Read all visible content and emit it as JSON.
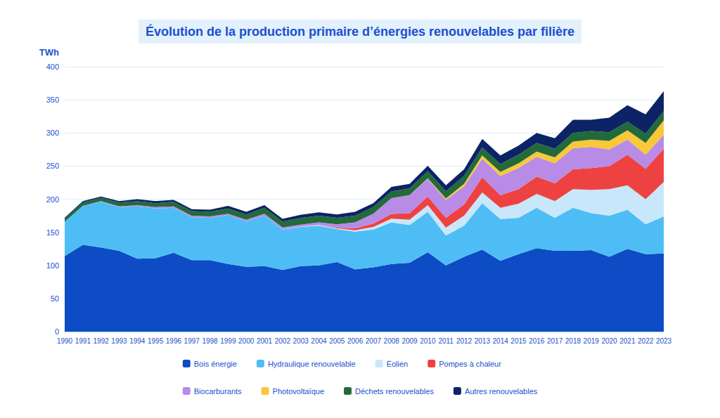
{
  "chart_data": {
    "type": "area",
    "title": "Évolution de la production primaire d’énergies renouvelables par filière",
    "y_label": "TWh",
    "stacked": true,
    "grid": true,
    "legend": "bottom",
    "ylim": [
      0,
      400
    ],
    "yticks": [
      0,
      50,
      100,
      150,
      200,
      250,
      300,
      350,
      400
    ],
    "categories": [
      "1990",
      "1991",
      "1992",
      "1993",
      "1994",
      "1995",
      "1996",
      "1997",
      "1998",
      "1999",
      "2000",
      "2001",
      "2002",
      "2003",
      "2004",
      "2005",
      "2006",
      "2007",
      "2008",
      "2009",
      "2010",
      "2011",
      "2012",
      "2013",
      "2014",
      "2015",
      "2016",
      "2017",
      "2018",
      "2019",
      "2020",
      "2021",
      "2022",
      "2023"
    ],
    "series": [
      {
        "name": "Bois énergie",
        "color": "#0d4cc4",
        "values": [
          114,
          131,
          127,
          122,
          110,
          111,
          119,
          108,
          108,
          102,
          98,
          99,
          93,
          99,
          100,
          105,
          94,
          97,
          102,
          104,
          120,
          100,
          113,
          124,
          107,
          117,
          126,
          122,
          122,
          123,
          113,
          125,
          117,
          118
        ]
      },
      {
        "name": "Hydraulique renouvelable",
        "color": "#4fbdf5",
        "values": [
          52,
          59,
          69,
          66,
          79,
          75,
          68,
          65,
          64,
          74,
          68,
          76,
          61,
          59,
          60,
          50,
          57,
          57,
          63,
          57,
          61,
          45,
          47,
          70,
          63,
          55,
          61,
          50,
          65,
          56,
          62,
          59,
          45,
          56
        ]
      },
      {
        "name": "Éolien",
        "color": "#c8e7fb",
        "values": [
          0,
          0,
          0,
          0,
          0,
          0,
          0,
          0,
          0,
          0,
          0,
          0,
          0.3,
          0.5,
          1,
          1,
          2,
          4,
          5.6,
          7.9,
          9.9,
          12,
          15,
          16,
          17,
          21,
          21,
          25,
          28,
          35,
          40,
          37,
          38,
          52
        ]
      },
      {
        "name": "Pompes à chaleur",
        "color": "#ee4242",
        "values": [
          0,
          0,
          0,
          0,
          0,
          0,
          0,
          0,
          0,
          0,
          0,
          0,
          0,
          0,
          0,
          1,
          3,
          5,
          7,
          10,
          13,
          15,
          17,
          23,
          19,
          22,
          26,
          27,
          30,
          33,
          35,
          46,
          46,
          50
        ]
      },
      {
        "name": "Biocarburants",
        "color": "#b78be6",
        "values": [
          0,
          0,
          1,
          1,
          2,
          2,
          2,
          2,
          2,
          2,
          3,
          3,
          3,
          3,
          4,
          5,
          9,
          15,
          24,
          27,
          27,
          27,
          27,
          28,
          29,
          32,
          30,
          30,
          32,
          32,
          25,
          23,
          21,
          21
        ]
      },
      {
        "name": "Photovoltaïque",
        "color": "#f8c838",
        "values": [
          0,
          0,
          0,
          0,
          0,
          0,
          0,
          0,
          0,
          0,
          0,
          0,
          0,
          0,
          0,
          0,
          0,
          0,
          0.1,
          0.3,
          0.6,
          2,
          4,
          5,
          6,
          7,
          8,
          9,
          10,
          11,
          13,
          14,
          18,
          22
        ]
      },
      {
        "name": "Déchets renouvelables",
        "color": "#236a3b",
        "values": [
          4,
          5,
          5,
          6,
          6,
          6,
          7,
          7,
          7,
          8,
          8,
          9,
          9,
          10,
          10,
          10,
          10,
          10,
          10,
          10,
          11,
          11,
          12,
          12,
          12,
          13,
          13,
          13,
          13,
          13,
          13,
          13,
          14,
          14
        ]
      },
      {
        "name": "Autres renouvelables",
        "color": "#0c2465",
        "values": [
          2,
          2,
          2,
          2,
          3,
          3,
          3,
          3,
          3,
          4,
          4,
          4,
          4,
          5,
          5,
          5,
          6,
          6,
          7,
          7,
          8,
          9,
          10,
          13,
          13,
          14,
          15,
          16,
          20,
          17,
          22,
          25,
          29,
          30
        ]
      }
    ]
  }
}
